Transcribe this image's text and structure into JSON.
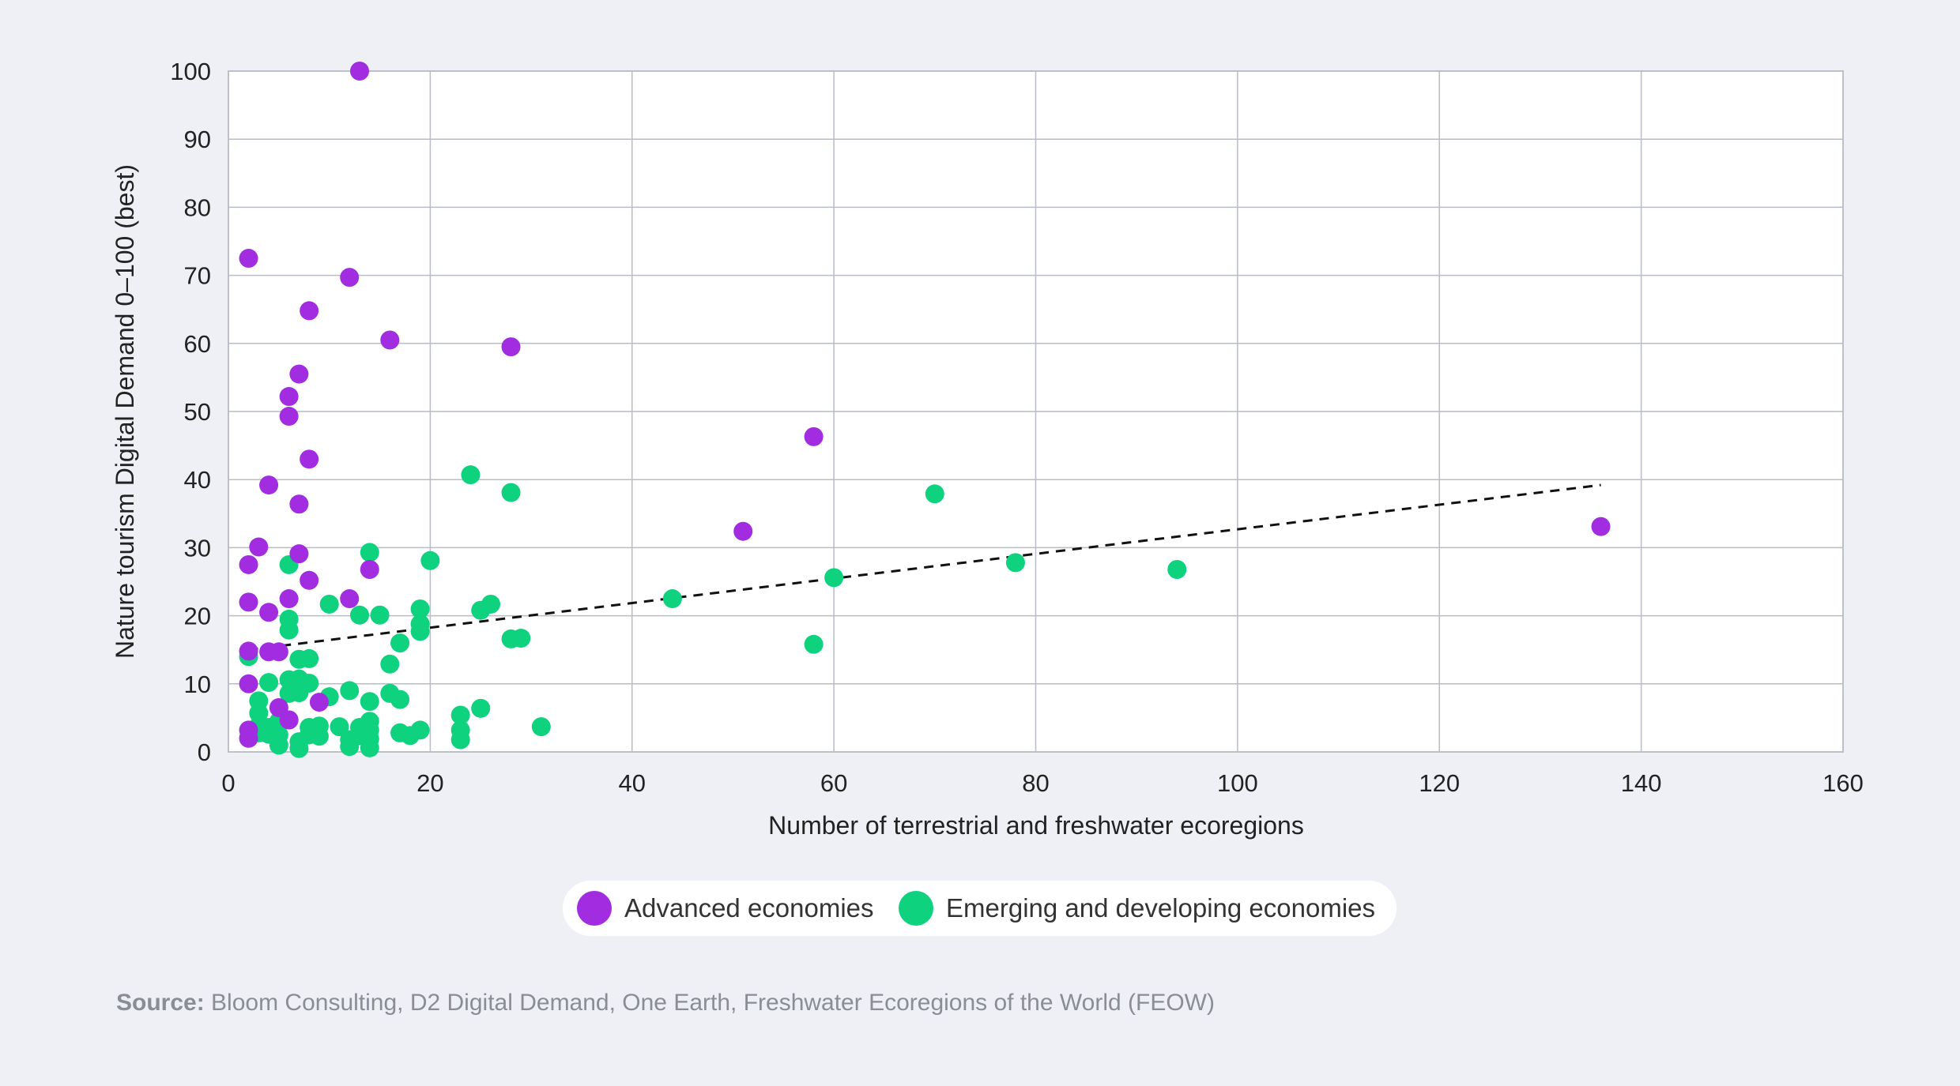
{
  "chart_data": {
    "type": "scatter",
    "xlabel": "Number of terrestrial and freshwater ecoregions",
    "ylabel": "Nature tourism Digital Demand  0–100 (best)",
    "xlim": [
      0,
      160
    ],
    "ylim": [
      0,
      100
    ],
    "xticks": [
      "0",
      "20",
      "40",
      "60",
      "80",
      "100",
      "120",
      "140",
      "160"
    ],
    "yticks": [
      "0",
      "10",
      "20",
      "30",
      "40",
      "50",
      "60",
      "70",
      "80",
      "90",
      "100"
    ],
    "grid": true,
    "legend_position": "bottom-center",
    "colors": {
      "advanced": "#a12ce0",
      "emerging": "#0fd27f",
      "trendline": "#111111",
      "grid": "#b9bcc6"
    },
    "series": [
      {
        "name": "Advanced economies",
        "points": [
          [
            13,
            100
          ],
          [
            2,
            72.5
          ],
          [
            12,
            69.7
          ],
          [
            8,
            64.8
          ],
          [
            16,
            60.5
          ],
          [
            28,
            59.5
          ],
          [
            7,
            55.5
          ],
          [
            6,
            52.2
          ],
          [
            6,
            49.3
          ],
          [
            58,
            46.3
          ],
          [
            8,
            43
          ],
          [
            4,
            39.2
          ],
          [
            7,
            36.4
          ],
          [
            51,
            32.4
          ],
          [
            136,
            33.1
          ],
          [
            3,
            30.1
          ],
          [
            7,
            29.1
          ],
          [
            2,
            27.5
          ],
          [
            14,
            26.8
          ],
          [
            8,
            25.2
          ],
          [
            6,
            22.5
          ],
          [
            12,
            22.5
          ],
          [
            2,
            22
          ],
          [
            4,
            20.5
          ],
          [
            2,
            14.8
          ],
          [
            4,
            14.7
          ],
          [
            5,
            14.7
          ],
          [
            2,
            10
          ],
          [
            9,
            7.3
          ],
          [
            5,
            6.5
          ],
          [
            6,
            4.7
          ],
          [
            2,
            3.2
          ],
          [
            2,
            2
          ]
        ]
      },
      {
        "name": "Emerging and developing economies",
        "points": [
          [
            24,
            40.7
          ],
          [
            28,
            38.1
          ],
          [
            70,
            37.9
          ],
          [
            14,
            29.3
          ],
          [
            20,
            28.1
          ],
          [
            78,
            27.8
          ],
          [
            6,
            27.5
          ],
          [
            94,
            26.8
          ],
          [
            60,
            25.6
          ],
          [
            44,
            22.5
          ],
          [
            10,
            21.7
          ],
          [
            26,
            21.7
          ],
          [
            19,
            21
          ],
          [
            25,
            20.8
          ],
          [
            13,
            20.1
          ],
          [
            15,
            20.1
          ],
          [
            6,
            19.5
          ],
          [
            19,
            18.8
          ],
          [
            6,
            17.9
          ],
          [
            19,
            17.7
          ],
          [
            28,
            16.6
          ],
          [
            29,
            16.7
          ],
          [
            17,
            16
          ],
          [
            58,
            15.8
          ],
          [
            2,
            14
          ],
          [
            7,
            13.6
          ],
          [
            8,
            13.7
          ],
          [
            16,
            12.9
          ],
          [
            4,
            10.2
          ],
          [
            6,
            10.6
          ],
          [
            7,
            10.7
          ],
          [
            8,
            10.1
          ],
          [
            6,
            8.6
          ],
          [
            7,
            8.7
          ],
          [
            12,
            9
          ],
          [
            10,
            8.1
          ],
          [
            16,
            8.6
          ],
          [
            17,
            7.7
          ],
          [
            14,
            7.4
          ],
          [
            3,
            7.5
          ],
          [
            25,
            6.4
          ],
          [
            3,
            5.7
          ],
          [
            23,
            5.4
          ],
          [
            5,
            4.5
          ],
          [
            6,
            4.7
          ],
          [
            14,
            4.5
          ],
          [
            3,
            3.8
          ],
          [
            4,
            3.6
          ],
          [
            8,
            3.6
          ],
          [
            9,
            3.8
          ],
          [
            11,
            3.7
          ],
          [
            13,
            3.6
          ],
          [
            31,
            3.7
          ],
          [
            19,
            3.2
          ],
          [
            14,
            3.2
          ],
          [
            4,
            2.6
          ],
          [
            5,
            2.5
          ],
          [
            8,
            2.5
          ],
          [
            9,
            2.3
          ],
          [
            3,
            2.8
          ],
          [
            17,
            2.8
          ],
          [
            18,
            2.4
          ],
          [
            23,
            3.2
          ],
          [
            7,
            1.5
          ],
          [
            12,
            1.8
          ],
          [
            13,
            2.4
          ],
          [
            14,
            1.9
          ],
          [
            23,
            1.8
          ],
          [
            5,
            1
          ],
          [
            7,
            0.5
          ],
          [
            12,
            0.8
          ],
          [
            14,
            0.6
          ]
        ]
      }
    ],
    "trendline": {
      "style": "dashed",
      "from": [
        2,
        15
      ],
      "to": [
        136,
        39.2
      ]
    }
  },
  "source": {
    "label": "Source:",
    "text": " Bloom Consulting, D2 Digital Demand, One Earth, Freshwater Ecoregions of the World (FEOW)"
  }
}
